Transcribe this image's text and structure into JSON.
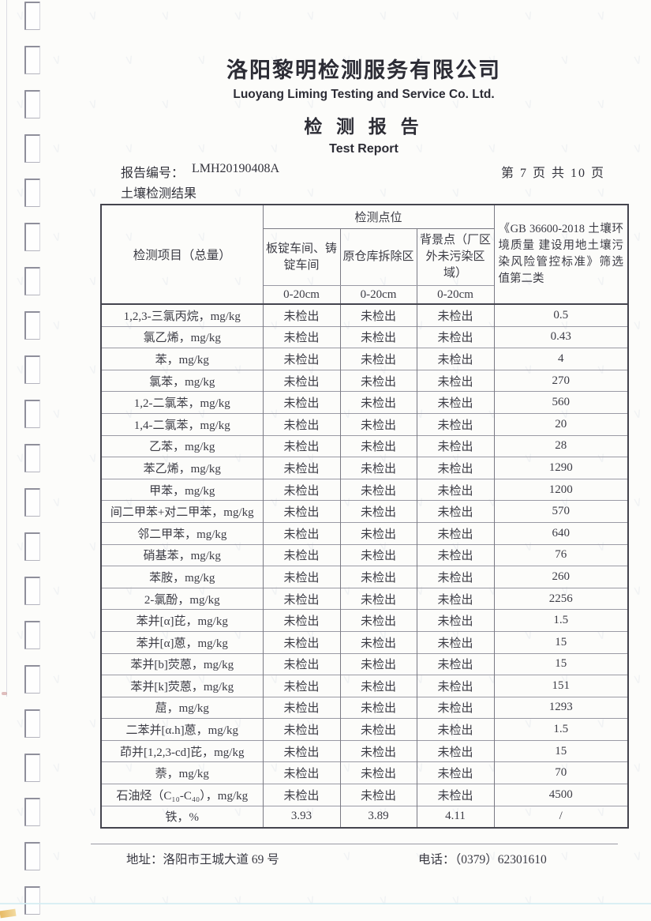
{
  "header": {
    "company_cn": "洛阳黎明检测服务有限公司",
    "company_en": "Luoyang Liming Testing and Service Co. Ltd.",
    "report_title_cn": "检 测 报 告",
    "report_title_en": "Test Report",
    "report_no_label": "报告编号：",
    "report_no": "LMH20190408A",
    "page_indicator": "第 7 页 共 10 页",
    "section_title": "土壤检测结果"
  },
  "table": {
    "item_header": "检测项目（总量）",
    "points_header": "检测点位",
    "locations": [
      "板锭车间、铸锭车间",
      "原仓库拆除区",
      "背景点（厂区外未污染区域）"
    ],
    "depths": [
      "0-20cm",
      "0-20cm",
      "0-20cm"
    ],
    "standard_header": "《GB 36600-2018 土壤环境质量 建设用地土壤污染风险管控标准》筛选值第二类",
    "rows": [
      {
        "item": "1,2,3-三氯丙烷，mg/kg",
        "values": [
          "未检出",
          "未检出",
          "未检出"
        ],
        "limit": "0.5"
      },
      {
        "item": "氯乙烯，mg/kg",
        "values": [
          "未检出",
          "未检出",
          "未检出"
        ],
        "limit": "0.43"
      },
      {
        "item": "苯，mg/kg",
        "values": [
          "未检出",
          "未检出",
          "未检出"
        ],
        "limit": "4"
      },
      {
        "item": "氯苯，mg/kg",
        "values": [
          "未检出",
          "未检出",
          "未检出"
        ],
        "limit": "270"
      },
      {
        "item": "1,2-二氯苯，mg/kg",
        "values": [
          "未检出",
          "未检出",
          "未检出"
        ],
        "limit": "560"
      },
      {
        "item": "1,4-二氯苯，mg/kg",
        "values": [
          "未检出",
          "未检出",
          "未检出"
        ],
        "limit": "20"
      },
      {
        "item": "乙苯，mg/kg",
        "values": [
          "未检出",
          "未检出",
          "未检出"
        ],
        "limit": "28"
      },
      {
        "item": "苯乙烯，mg/kg",
        "values": [
          "未检出",
          "未检出",
          "未检出"
        ],
        "limit": "1290"
      },
      {
        "item": "甲苯，mg/kg",
        "values": [
          "未检出",
          "未检出",
          "未检出"
        ],
        "limit": "1200"
      },
      {
        "item": "间二甲苯+对二甲苯，mg/kg",
        "values": [
          "未检出",
          "未检出",
          "未检出"
        ],
        "limit": "570"
      },
      {
        "item": "邻二甲苯，mg/kg",
        "values": [
          "未检出",
          "未检出",
          "未检出"
        ],
        "limit": "640"
      },
      {
        "item": "硝基苯，mg/kg",
        "values": [
          "未检出",
          "未检出",
          "未检出"
        ],
        "limit": "76"
      },
      {
        "item": "苯胺，mg/kg",
        "values": [
          "未检出",
          "未检出",
          "未检出"
        ],
        "limit": "260"
      },
      {
        "item": "2-氯酚，mg/kg",
        "values": [
          "未检出",
          "未检出",
          "未检出"
        ],
        "limit": "2256"
      },
      {
        "item": "苯并[α]芘，mg/kg",
        "values": [
          "未检出",
          "未检出",
          "未检出"
        ],
        "limit": "1.5"
      },
      {
        "item": "苯并[α]蒽，mg/kg",
        "values": [
          "未检出",
          "未检出",
          "未检出"
        ],
        "limit": "15"
      },
      {
        "item": "苯并[b]荧蒽，mg/kg",
        "values": [
          "未检出",
          "未检出",
          "未检出"
        ],
        "limit": "15"
      },
      {
        "item": "苯并[k]荧蒽，mg/kg",
        "values": [
          "未检出",
          "未检出",
          "未检出"
        ],
        "limit": "151"
      },
      {
        "item": "䓛，mg/kg",
        "values": [
          "未检出",
          "未检出",
          "未检出"
        ],
        "limit": "1293"
      },
      {
        "item": "二苯并[α.h]蒽，mg/kg",
        "values": [
          "未检出",
          "未检出",
          "未检出"
        ],
        "limit": "1.5"
      },
      {
        "item": "茚并[1,2,3-cd]芘，mg/kg",
        "values": [
          "未检出",
          "未检出",
          "未检出"
        ],
        "limit": "15"
      },
      {
        "item": "萘，mg/kg",
        "values": [
          "未检出",
          "未检出",
          "未检出"
        ],
        "limit": "70"
      },
      {
        "item": "石油烃（C₁₀-C₄₀），mg/kg",
        "values": [
          "未检出",
          "未检出",
          "未检出"
        ],
        "limit": "4500"
      },
      {
        "item": "铁，%",
        "values": [
          "3.93",
          "3.89",
          "4.11"
        ],
        "limit": "/"
      }
    ]
  },
  "footer": {
    "address_label": "地址：",
    "address": "洛阳市王城大道 69 号",
    "phone_label": "电话：",
    "phone": "（0379）62301610"
  }
}
